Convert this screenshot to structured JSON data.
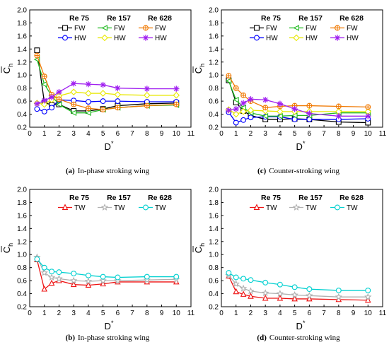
{
  "chart_data": [
    {
      "type": "line",
      "caption": {
        "letter": "(a)",
        "text": "In-phase stroking wing"
      },
      "xlabel": "D",
      "xlabel_sup": "*",
      "ylabel": "C",
      "ylabel_sub": "h",
      "xlim": [
        0,
        11
      ],
      "ylim": [
        0.2,
        2.0
      ],
      "xticks": [
        0,
        1,
        2,
        3,
        4,
        5,
        6,
        7,
        8,
        9,
        10,
        11
      ],
      "yticks": [
        0.2,
        0.4,
        0.6,
        0.8,
        1.0,
        1.2,
        1.4,
        1.6,
        1.8,
        2.0
      ],
      "x": [
        0.5,
        1,
        1.5,
        2,
        3,
        4,
        5,
        6,
        8,
        10
      ],
      "legend_heads": [
        "Re 75",
        "Re 157",
        "Re 628"
      ],
      "series": [
        {
          "name": "FW",
          "group": 0,
          "color": "#000000",
          "marker": "square",
          "values": [
            1.38,
            0.58,
            0.54,
            0.55,
            0.45,
            0.45,
            0.48,
            0.53,
            0.56,
            0.57
          ]
        },
        {
          "name": "HW",
          "group": 0,
          "color": "#0000ff",
          "marker": "circle",
          "values": [
            0.48,
            0.44,
            0.5,
            0.62,
            0.61,
            0.59,
            0.6,
            0.6,
            0.59,
            0.59
          ]
        },
        {
          "name": "FW",
          "group": 1,
          "color": "#22bb22",
          "marker": "triangle-left",
          "values": [
            1.24,
            0.86,
            0.68,
            0.55,
            0.42,
            0.42,
            0.47,
            0.5,
            0.53,
            0.54
          ]
        },
        {
          "name": "HW",
          "group": 1,
          "color": "#e8e800",
          "marker": "diamond",
          "values": [
            0.57,
            0.55,
            0.62,
            0.68,
            0.74,
            0.72,
            0.72,
            0.7,
            0.69,
            0.69
          ]
        },
        {
          "name": "FW",
          "group": 2,
          "color": "#f07800",
          "marker": "circle-cross",
          "values": [
            1.3,
            0.98,
            0.7,
            0.63,
            0.55,
            0.49,
            0.47,
            0.5,
            0.53,
            0.55
          ]
        },
        {
          "name": "HW",
          "group": 2,
          "color": "#a020f0",
          "marker": "star",
          "values": [
            0.56,
            0.61,
            0.66,
            0.74,
            0.87,
            0.86,
            0.85,
            0.8,
            0.79,
            0.79
          ]
        }
      ]
    },
    {
      "type": "line",
      "caption": {
        "letter": "(c)",
        "text": "Counter-stroking wing"
      },
      "xlabel": "D",
      "xlabel_sup": "*",
      "ylabel": "C",
      "ylabel_sub": "h",
      "xlim": [
        0,
        11
      ],
      "ylim": [
        0.2,
        2.0
      ],
      "xticks": [
        0,
        1,
        2,
        3,
        4,
        5,
        6,
        7,
        8,
        9,
        10,
        11
      ],
      "yticks": [
        0.2,
        0.4,
        0.6,
        0.8,
        1.0,
        1.2,
        1.4,
        1.6,
        1.8,
        2.0
      ],
      "x": [
        0.5,
        1,
        1.5,
        2,
        3,
        4,
        5,
        6,
        8,
        10
      ],
      "legend_heads": [
        "Re 75",
        "Re 157",
        "Re 628"
      ],
      "series": [
        {
          "name": "FW",
          "group": 0,
          "color": "#000000",
          "marker": "square",
          "values": [
            0.92,
            0.58,
            0.45,
            0.38,
            0.32,
            0.32,
            0.33,
            0.32,
            0.28,
            0.27
          ]
        },
        {
          "name": "HW",
          "group": 0,
          "color": "#0000ff",
          "marker": "circle",
          "values": [
            0.43,
            0.27,
            0.31,
            0.35,
            0.36,
            0.36,
            0.32,
            0.32,
            0.32,
            0.33
          ]
        },
        {
          "name": "FW",
          "group": 1,
          "color": "#22bb22",
          "marker": "triangle-left",
          "values": [
            0.91,
            0.62,
            0.5,
            0.42,
            0.37,
            0.37,
            0.38,
            0.38,
            0.42,
            0.42
          ]
        },
        {
          "name": "HW",
          "group": 1,
          "color": "#e8e800",
          "marker": "diamond",
          "values": [
            0.47,
            0.4,
            0.44,
            0.46,
            0.45,
            0.44,
            0.44,
            0.44,
            0.44,
            0.44
          ]
        },
        {
          "name": "FW",
          "group": 2,
          "color": "#f07800",
          "marker": "circle-cross",
          "values": [
            0.99,
            0.8,
            0.69,
            0.6,
            0.5,
            0.52,
            0.53,
            0.53,
            0.52,
            0.51
          ]
        },
        {
          "name": "HW",
          "group": 2,
          "color": "#a020f0",
          "marker": "star",
          "values": [
            0.46,
            0.48,
            0.57,
            0.63,
            0.62,
            0.56,
            0.48,
            0.41,
            0.37,
            0.37
          ]
        }
      ]
    },
    {
      "type": "line",
      "caption": {
        "letter": "(b)",
        "text": "In-phase stroking wing"
      },
      "xlabel": "D",
      "xlabel_sup": "*",
      "ylabel": "C",
      "ylabel_sub": "h",
      "xlim": [
        0,
        11
      ],
      "ylim": [
        0.2,
        2.0
      ],
      "xticks": [
        0,
        1,
        2,
        3,
        4,
        5,
        6,
        7,
        8,
        9,
        10,
        11
      ],
      "yticks": [
        0.2,
        0.4,
        0.6,
        0.8,
        1.0,
        1.2,
        1.4,
        1.6,
        1.8,
        2.0
      ],
      "x": [
        0.5,
        1,
        1.5,
        2,
        3,
        4,
        5,
        6,
        8,
        10
      ],
      "legend_heads": [
        "Re 75",
        "Re 157",
        "Re 628"
      ],
      "series": [
        {
          "name": "TW",
          "group": 0,
          "color": "#ee1111",
          "marker": "triangle",
          "values": [
            0.92,
            0.47,
            0.56,
            0.6,
            0.54,
            0.53,
            0.55,
            0.58,
            0.58,
            0.58
          ]
        },
        {
          "name": "TW",
          "group": 1,
          "color": "#b0b0b0",
          "marker": "star5",
          "values": [
            0.96,
            0.72,
            0.65,
            0.63,
            0.6,
            0.59,
            0.6,
            0.6,
            0.61,
            0.62
          ]
        },
        {
          "name": "TW",
          "group": 2,
          "color": "#00d0d0",
          "marker": "circle",
          "values": [
            0.93,
            0.8,
            0.74,
            0.73,
            0.71,
            0.68,
            0.66,
            0.65,
            0.66,
            0.66
          ]
        }
      ]
    },
    {
      "type": "line",
      "caption": {
        "letter": "(d)",
        "text": "Counter-stroking wing"
      },
      "xlabel": "D",
      "xlabel_sup": "*",
      "ylabel": "C",
      "ylabel_sub": "h",
      "xlim": [
        0,
        11
      ],
      "ylim": [
        0.2,
        2.0
      ],
      "xticks": [
        0,
        1,
        2,
        3,
        4,
        5,
        6,
        7,
        8,
        9,
        10,
        11
      ],
      "yticks": [
        0.2,
        0.4,
        0.6,
        0.8,
        1.0,
        1.2,
        1.4,
        1.6,
        1.8,
        2.0
      ],
      "x": [
        0.5,
        1,
        1.5,
        2,
        3,
        4,
        5,
        6,
        8,
        10
      ],
      "legend_heads": [
        "Re 75",
        "Re 157",
        "Re 628"
      ],
      "series": [
        {
          "name": "TW",
          "group": 0,
          "color": "#ee1111",
          "marker": "triangle",
          "values": [
            0.67,
            0.43,
            0.39,
            0.36,
            0.33,
            0.33,
            0.32,
            0.32,
            0.31,
            0.3
          ]
        },
        {
          "name": "TW",
          "group": 1,
          "color": "#b0b0b0",
          "marker": "star5",
          "values": [
            0.68,
            0.55,
            0.48,
            0.44,
            0.41,
            0.4,
            0.38,
            0.37,
            0.35,
            0.35
          ]
        },
        {
          "name": "TW",
          "group": 2,
          "color": "#00d0d0",
          "marker": "circle",
          "values": [
            0.72,
            0.65,
            0.63,
            0.61,
            0.57,
            0.54,
            0.5,
            0.47,
            0.45,
            0.45
          ]
        }
      ]
    }
  ]
}
